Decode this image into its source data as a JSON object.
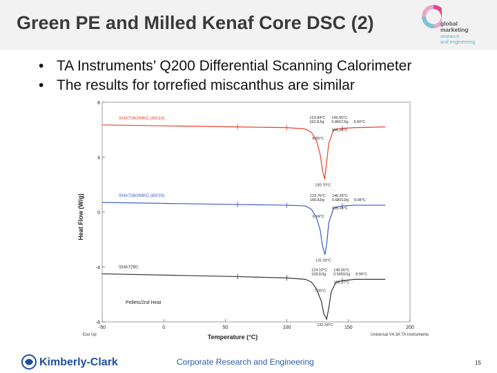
{
  "slide": {
    "title": "Green PE and Milled Kenaf Core DSC (2)",
    "bullets": [
      "TA Instruments’ Q200 Differential Scanning Calorimeter",
      "The results for torrefied miscanthus are similar"
    ],
    "footer_center": "Corporate Research and Engineering",
    "page_number": "15"
  },
  "logo_gm": {
    "line1": "global",
    "line2": "marketing",
    "line3": "research",
    "line4": "and engineering"
  },
  "logo_kc": {
    "text": "Kimberly-Clark"
  },
  "chart_data": {
    "type": "line",
    "xlabel": "Temperature (°C)",
    "ylabel": "Heat Flow (W/g)",
    "xlim": [
      -50,
      200
    ],
    "ylim": [
      -8,
      8
    ],
    "xticks": [
      "-50",
      "0",
      "50",
      "100",
      "150",
      "200"
    ],
    "yticks": [
      "8",
      "4",
      "0",
      "-4",
      "-8"
    ],
    "footer_left": "Exo Up",
    "footer_right": "Universal V4.3A TA Instruments",
    "series": [
      {
        "name": "SHA7260/MKC (90/10)",
        "color": "#e8402a",
        "x": [
          -50,
          60,
          100,
          115,
          120,
          124,
          127,
          129,
          130.7,
          132,
          134,
          138,
          145,
          155,
          180
        ],
        "y": [
          6.35,
          6.2,
          6.15,
          6.05,
          5.8,
          5.2,
          4.2,
          3.0,
          2.4,
          3.4,
          5.0,
          6.0,
          6.1,
          6.15,
          6.2
        ],
        "annotations": [
          "123.84°C",
          "162.8J/g",
          "145.55°C",
          "0.8667J/g",
          "9.60°C",
          "155.24°C",
          "6.65°C",
          "130.70°C"
        ]
      },
      {
        "name": "SHA7260/MKC (80/20)",
        "color": "#3a58c8",
        "x": [
          -50,
          60,
          100,
          115,
          120,
          124,
          127,
          129,
          131,
          132.5,
          134,
          138,
          145,
          155,
          180
        ],
        "y": [
          0.7,
          0.55,
          0.5,
          0.45,
          0.2,
          -0.4,
          -1.3,
          -2.5,
          -3.1,
          -2.2,
          -0.8,
          0.3,
          0.45,
          0.5,
          0.5
        ],
        "annotations": [
          "123.76°C",
          "166.8J/g",
          "146.33°C",
          "0.6801J/g",
          "9.08°C",
          "155.24°C",
          "6.24°C",
          "131.03°C"
        ]
      },
      {
        "name": "SHA7260",
        "color": "#333333",
        "x": [
          -50,
          60,
          100,
          115,
          120,
          124,
          128,
          130,
          132.3,
          134,
          136,
          140,
          145,
          155,
          180
        ],
        "y": [
          -4.5,
          -4.7,
          -4.8,
          -4.9,
          -5.1,
          -5.6,
          -6.5,
          -7.4,
          -7.8,
          -7.0,
          -5.8,
          -5.1,
          -5.0,
          -4.9,
          -4.9
        ],
        "annotations": [
          "124.10°C",
          "158.8J/g",
          "148.55°C",
          "0.5659J/g",
          "8.96°C",
          "155.77°C",
          "7.35°C",
          "132.34°C"
        ]
      }
    ],
    "panel_note": "Pellets/2nd Heat"
  }
}
